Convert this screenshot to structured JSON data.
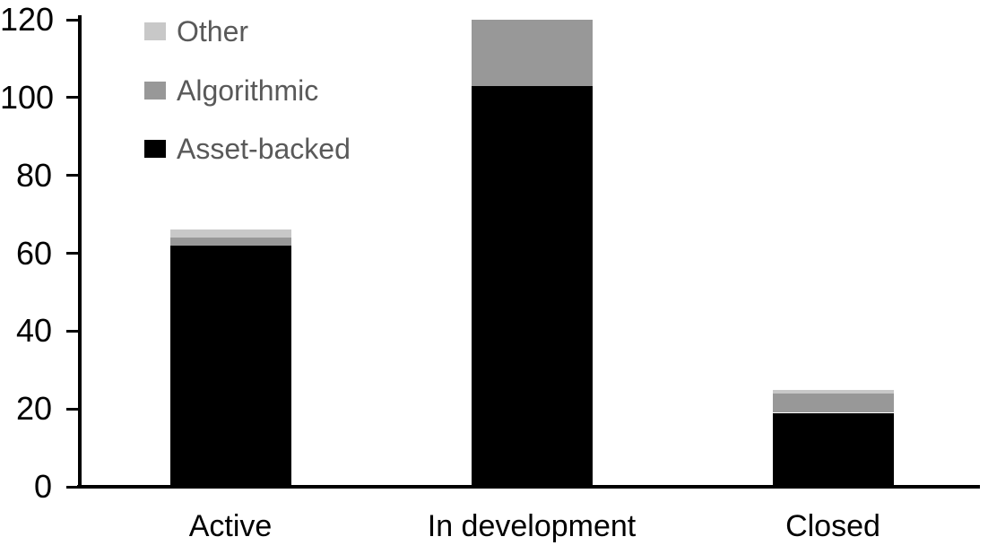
{
  "chart_data": {
    "type": "bar",
    "stacked": true,
    "title": "",
    "xlabel": "",
    "ylabel": "",
    "categories": [
      "Active",
      "In development",
      "Closed"
    ],
    "series": [
      {
        "name": "Asset-backed",
        "color": "#000000",
        "values": [
          62,
          103,
          19
        ]
      },
      {
        "name": "Algorithmic",
        "color": "#989898",
        "values": [
          2,
          17,
          5
        ]
      },
      {
        "name": "Other",
        "color": "#c8c8c8",
        "values": [
          2,
          0,
          1
        ]
      }
    ],
    "y_axis": {
      "min": 0,
      "max": 120,
      "tick_interval": 20,
      "ticks": [
        0,
        20,
        40,
        60,
        80,
        100,
        120
      ]
    },
    "x_axis": {
      "labels": [
        "Active",
        "In development",
        "Closed"
      ]
    },
    "legend": {
      "position": "top-left",
      "items": [
        {
          "label": "Other",
          "color": "#c8c8c8"
        },
        {
          "label": "Algorithmic",
          "color": "#989898"
        },
        {
          "label": "Asset-backed",
          "color": "#000000"
        }
      ]
    },
    "grid": false
  },
  "colors": {
    "background": "#ffffff",
    "axis": "#000000",
    "tick_label_text": "#000000",
    "category_label_text": "#000000",
    "legend_text": "#595959"
  }
}
